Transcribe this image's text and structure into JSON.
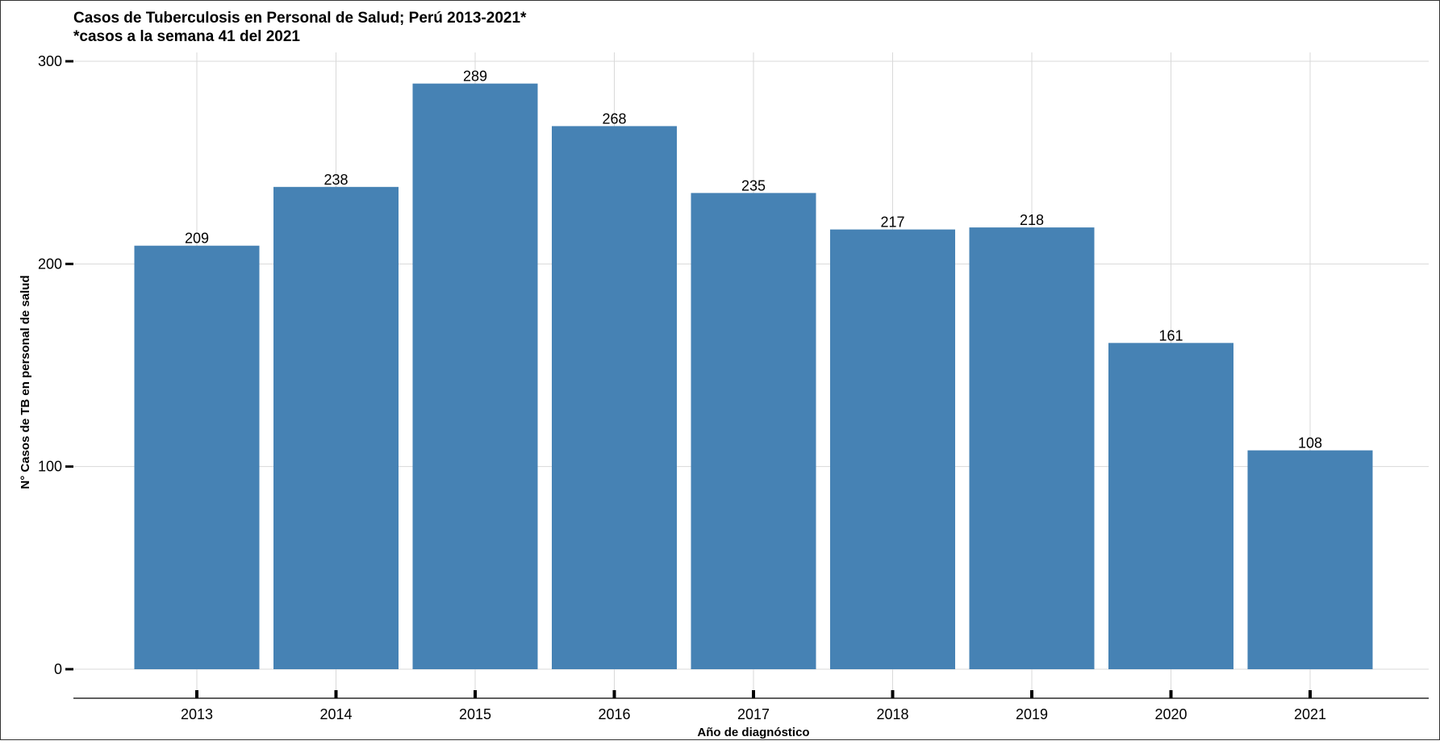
{
  "chart_data": {
    "type": "bar",
    "title": "Casos de Tuberculosis en Personal de Salud; Perú 2013-2021*",
    "subtitle": "*casos a la semana 41 del 2021",
    "xlabel": "Año de diagnóstico",
    "ylabel": "N° Casos de TB en personal de salud",
    "categories": [
      "2013",
      "2014",
      "2015",
      "2016",
      "2017",
      "2018",
      "2019",
      "2020",
      "2021"
    ],
    "values": [
      209,
      238,
      289,
      268,
      235,
      217,
      218,
      161,
      108
    ],
    "ylim": [
      0,
      300
    ],
    "yticks": [
      0,
      100,
      200,
      300
    ],
    "grid": true,
    "legend": "none",
    "colors": {
      "bar": "#4682b4",
      "grid": "#d9d9d9",
      "axis": "#000000"
    }
  }
}
